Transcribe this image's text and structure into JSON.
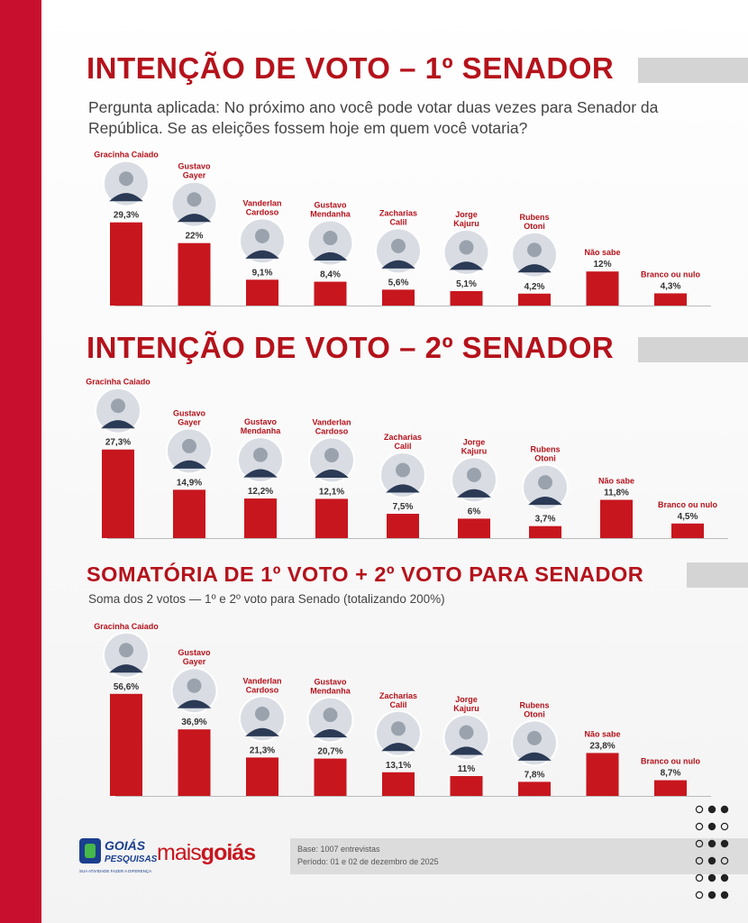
{
  "titles": {
    "t1": "INTENÇÃO DE VOTO – 1º SENADOR",
    "t2": "INTENÇÃO DE VOTO – 2º SENADOR",
    "t3": "SOMATÓRIA DE 1º VOTO + 2º VOTO PARA SENADOR"
  },
  "question": "Pergunta aplicada: No próximo ano você pode votar duas vezes para Senador da República. Se as eleições fossem hoje em quem você votaria?",
  "subtext": "Soma dos 2 votos — 1º e 2º voto para Senado (totalizando 200%)",
  "colors": {
    "accent": "#b5121b",
    "bar": "#c8161e",
    "stripe": "#c8102e",
    "panel": "#d4d4d4"
  },
  "footer": {
    "logo1_main": "GOIÁS",
    "logo1_sub": "PESQUISAS",
    "logo1_tag": "SUA ATIVIDADE FAZER A DIFERENÇA",
    "logo2_a": "mais",
    "logo2_b": "goiás",
    "base": "Base: 1007 entrevistas",
    "periodo": "Período: 01 e 02 de dezembro de 2025"
  },
  "chart_data": [
    {
      "type": "bar",
      "title": "INTENÇÃO DE VOTO – 1º SENADOR",
      "categories": [
        "Gracinha Caiado",
        "Gustavo Gayer",
        "Vanderlan Cardoso",
        "Gustavo Mendanha",
        "Zacharias Calil",
        "Jorge Kajuru",
        "Rubens Otoni",
        "Não sabe",
        "Branco ou nulo"
      ],
      "values": [
        29.3,
        22,
        9.1,
        8.4,
        5.6,
        5.1,
        4.2,
        12,
        4.3
      ],
      "labels": [
        "29,3%",
        "22%",
        "9,1%",
        "8,4%",
        "5,6%",
        "5,1%",
        "4,2%",
        "12%",
        "4,3%"
      ],
      "has_photo": [
        true,
        true,
        true,
        true,
        true,
        true,
        true,
        false,
        false
      ]
    },
    {
      "type": "bar",
      "title": "INTENÇÃO DE VOTO – 2º SENADOR",
      "categories": [
        "Gracinha Caiado",
        "Gustavo Gayer",
        "Gustavo Mendanha",
        "Vanderlan Cardoso",
        "Zacharias Calil",
        "Jorge Kajuru",
        "Rubens Otoni",
        "Não sabe",
        "Branco ou nulo"
      ],
      "values": [
        27.3,
        14.9,
        12.2,
        12.1,
        7.5,
        6,
        3.7,
        11.8,
        4.5
      ],
      "labels": [
        "27,3%",
        "14,9%",
        "12,2%",
        "12,1%",
        "7,5%",
        "6%",
        "3,7%",
        "11,8%",
        "4,5%"
      ],
      "has_photo": [
        true,
        true,
        true,
        true,
        true,
        true,
        true,
        false,
        false
      ]
    },
    {
      "type": "bar",
      "title": "SOMATÓRIA DE 1º VOTO + 2º VOTO PARA SENADOR",
      "categories": [
        "Gracinha Caiado",
        "Gustavo Gayer",
        "Vanderlan Cardoso",
        "Gustavo Mendanha",
        "Zacharias Calil",
        "Jorge Kajuru",
        "Rubens Otoni",
        "Não sabe",
        "Branco ou nulo"
      ],
      "values": [
        56.6,
        36.9,
        21.3,
        20.7,
        13.1,
        11,
        7.8,
        23.8,
        8.7
      ],
      "labels": [
        "56,6%",
        "36,9%",
        "21,3%",
        "20,7%",
        "13,1%",
        "11%",
        "7,8%",
        "23,8%",
        "8,7%"
      ],
      "has_photo": [
        true,
        true,
        true,
        true,
        true,
        true,
        true,
        false,
        false
      ]
    }
  ]
}
